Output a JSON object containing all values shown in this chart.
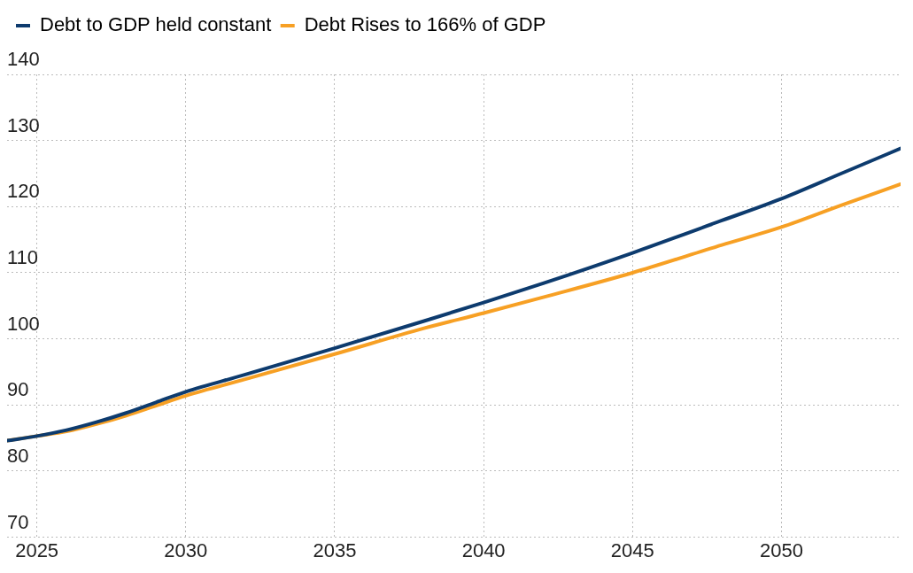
{
  "chart_data": {
    "type": "line",
    "x": [
      2024,
      2025,
      2026,
      2027,
      2028,
      2029,
      2030,
      2032,
      2035,
      2038,
      2040,
      2042,
      2045,
      2048,
      2050,
      2052,
      2054
    ],
    "series": [
      {
        "name": "Debt to GDP held constant",
        "color": "#0d3b6e",
        "values": [
          84.6,
          85.3,
          86.2,
          87.4,
          88.8,
          90.4,
          92.0,
          94.6,
          98.6,
          102.7,
          105.5,
          108.4,
          113.0,
          117.9,
          121.2,
          125.0,
          128.8
        ]
      },
      {
        "name": "Debt Rises to 166% of GDP",
        "color": "#f7a024",
        "values": [
          84.6,
          85.3,
          86.0,
          87.1,
          88.4,
          89.9,
          91.4,
          93.9,
          97.7,
          101.6,
          103.9,
          106.3,
          110.0,
          114.2,
          116.9,
          120.2,
          123.4
        ]
      }
    ],
    "xlim": [
      2024,
      2054
    ],
    "xticks": [
      2025,
      2030,
      2035,
      2040,
      2045,
      2050
    ],
    "ylim": [
      70,
      140
    ],
    "yticks": [
      70,
      80,
      90,
      100,
      110,
      120,
      130,
      140
    ],
    "grid": true,
    "legend": "top left",
    "marker": "none",
    "line_style": "solid"
  }
}
